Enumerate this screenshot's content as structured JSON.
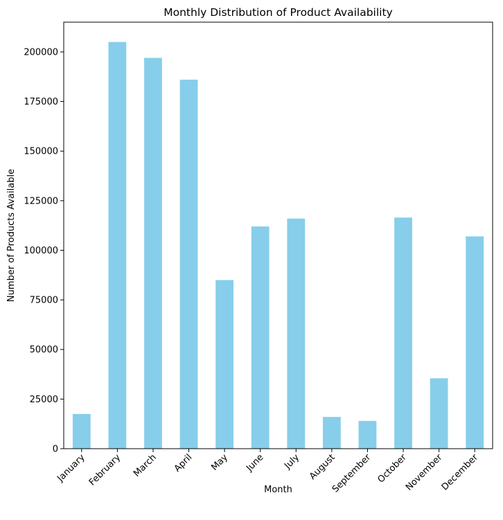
{
  "chart_data": {
    "type": "bar",
    "title": "Monthly Distribution of Product Availability",
    "xlabel": "Month",
    "ylabel": "Number of Products Available",
    "categories": [
      "January",
      "February",
      "March",
      "April",
      "May",
      "June",
      "July",
      "August",
      "September",
      "October",
      "November",
      "December"
    ],
    "values": [
      17500,
      205000,
      197000,
      186000,
      85000,
      112000,
      116000,
      16000,
      14000,
      116500,
      35500,
      107000
    ],
    "yticks": [
      "0",
      "25000",
      "50000",
      "75000",
      "100000",
      "125000",
      "150000",
      "175000",
      "200000"
    ],
    "ylim": [
      0,
      215000
    ],
    "grid": false,
    "bar_color": "#87ceeb"
  }
}
